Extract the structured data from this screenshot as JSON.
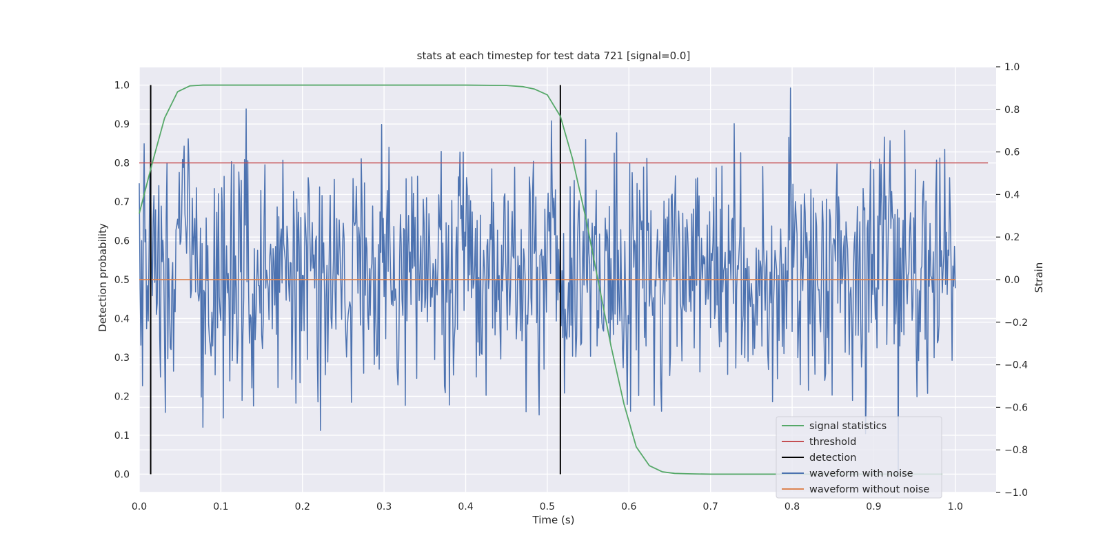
{
  "chart_data": {
    "type": "line",
    "title": "stats at each timestep for test data 721 [signal=0.0]",
    "xlabel": "Time (s)",
    "ylabel": "Detection probability",
    "y2label": "Strain",
    "xlim": [
      0.0,
      1.05
    ],
    "ylim": [
      -0.047,
      1.047
    ],
    "y2lim": [
      -1.0,
      1.0
    ],
    "xticks": [
      0.0,
      0.1,
      0.2,
      0.3,
      0.4,
      0.5,
      0.6,
      0.7,
      0.8,
      0.9,
      1.0
    ],
    "xtick_labels": [
      "0.0",
      "0.1",
      "0.2",
      "0.3",
      "0.4",
      "0.5",
      "0.6",
      "0.7",
      "0.8",
      "0.9",
      "1.0"
    ],
    "yticks": [
      0.0,
      0.1,
      0.2,
      0.3,
      0.4,
      0.5,
      0.6,
      0.7,
      0.8,
      0.9,
      1.0
    ],
    "ytick_labels": [
      "0.0",
      "0.1",
      "0.2",
      "0.3",
      "0.4",
      "0.5",
      "0.6",
      "0.7",
      "0.8",
      "0.9",
      "1.0"
    ],
    "y2ticks": [
      -1.0,
      -0.8,
      -0.6,
      -0.4,
      -0.2,
      0.0,
      0.2,
      0.4,
      0.6,
      0.8,
      1.0
    ],
    "y2tick_labels": [
      "−1.0",
      "−0.8",
      "−0.6",
      "−0.4",
      "−0.2",
      "0.0",
      "0.2",
      "0.4",
      "0.6",
      "0.8",
      "1.0"
    ],
    "grid": true,
    "legend_position": "lower-right",
    "series": [
      {
        "name": "signal statistics",
        "axis": "left",
        "color": "#55a868",
        "x": [
          0.0,
          0.016,
          0.031,
          0.047,
          0.062,
          0.078,
          0.1,
          0.2,
          0.3,
          0.4,
          0.45,
          0.47,
          0.484,
          0.5,
          0.516,
          0.531,
          0.547,
          0.562,
          0.578,
          0.594,
          0.609,
          0.625,
          0.641,
          0.656,
          0.672,
          0.7,
          0.8,
          0.9,
          0.984
        ],
        "values": [
          0.67,
          0.8,
          0.915,
          0.983,
          0.998,
          1.0,
          1.0,
          1.0,
          1.0,
          1.0,
          0.999,
          0.996,
          0.99,
          0.975,
          0.92,
          0.81,
          0.66,
          0.5,
          0.33,
          0.18,
          0.07,
          0.022,
          0.006,
          0.002,
          0.001,
          0.0,
          0.0,
          0.0,
          0.0
        ]
      },
      {
        "name": "threshold",
        "axis": "left",
        "color": "#c44e52",
        "x": [
          0.0,
          1.04
        ],
        "values": [
          0.8,
          0.8
        ]
      },
      {
        "name": "detection",
        "axis": "left",
        "color": "#000000",
        "segments": [
          {
            "x": 0.014,
            "y0": 0.0,
            "y1": 1.0
          },
          {
            "x": 0.516,
            "y0": 0.0,
            "y1": 1.0
          }
        ]
      },
      {
        "name": "waveform with noise",
        "axis": "right",
        "color": "#4c72b0",
        "x_start": 0.0,
        "x_end": 1.0,
        "values": [
          0.38,
          0.42,
          0.18,
          -0.28,
          0.85,
          0.02,
          0.25,
          -0.6,
          0.6,
          0.15,
          0.1,
          -0.12,
          0.48,
          -0.3,
          0.6,
          -0.2,
          0.3,
          0.05,
          -0.25,
          0.15,
          -0.68,
          0.45,
          0.08,
          -0.35,
          0.2,
          -0.4,
          0.5,
          0.3,
          -0.1,
          0.2,
          -0.15,
          0.35,
          0.55,
          -0.3,
          0.1,
          -0.55,
          0.42,
          0.05,
          0.25,
          -0.2,
          0.65,
          0.0,
          -0.45,
          0.3,
          0.15,
          -0.1,
          0.38,
          -0.65,
          0.55,
          0.1,
          -0.25,
          0.2,
          0.45,
          -0.35,
          0.05,
          0.3,
          -0.15,
          0.8,
          0.12,
          -0.4,
          0.25,
          0.0,
          -0.2,
          0.48,
          -0.05,
          0.3,
          -0.5,
          0.2,
          0.1,
          -0.3,
          0.55,
          -0.1,
          0.35,
          0.0,
          -0.25,
          0.6,
          0.15,
          -0.45,
          0.4,
          0.05
        ],
        "seed": 721
      },
      {
        "name": "waveform without noise",
        "axis": "right",
        "color": "#dd8452",
        "x": [
          0.0,
          1.0
        ],
        "values": [
          0.0,
          0.0
        ]
      }
    ]
  }
}
